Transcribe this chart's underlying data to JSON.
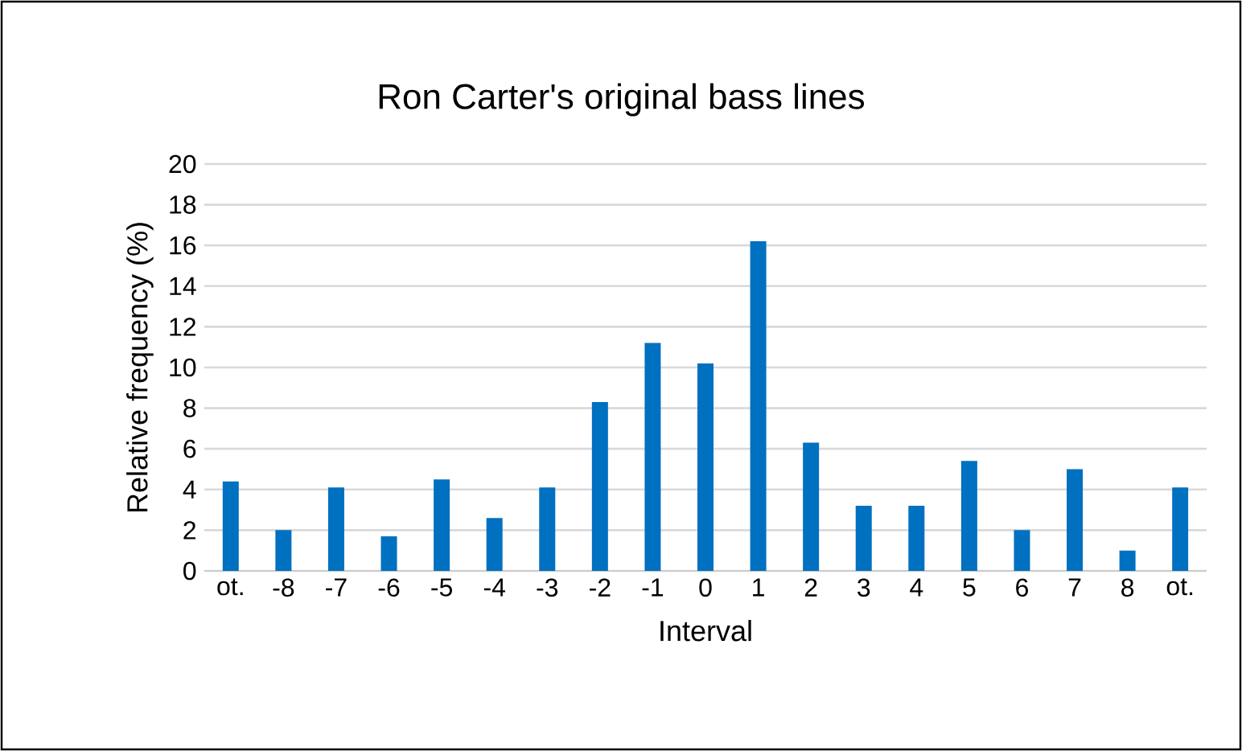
{
  "chart_data": {
    "type": "bar",
    "title": "Ron Carter's original bass lines",
    "xlabel": "Interval",
    "ylabel": "Relative frequency (%)",
    "categories": [
      "ot.",
      "-8",
      "-7",
      "-6",
      "-5",
      "-4",
      "-3",
      "-2",
      "-1",
      "0",
      "1",
      "2",
      "3",
      "4",
      "5",
      "6",
      "7",
      "8",
      "ot."
    ],
    "values": [
      4.4,
      2.0,
      4.1,
      1.7,
      4.5,
      2.6,
      4.1,
      8.3,
      11.2,
      10.2,
      16.2,
      6.3,
      3.2,
      3.2,
      5.4,
      2.0,
      5.0,
      1.0,
      4.1
    ],
    "color": "#0070c0",
    "ylim": [
      0,
      20
    ],
    "yticks": [
      0,
      2,
      4,
      6,
      8,
      10,
      12,
      14,
      16,
      18,
      20
    ],
    "grid": "y"
  }
}
